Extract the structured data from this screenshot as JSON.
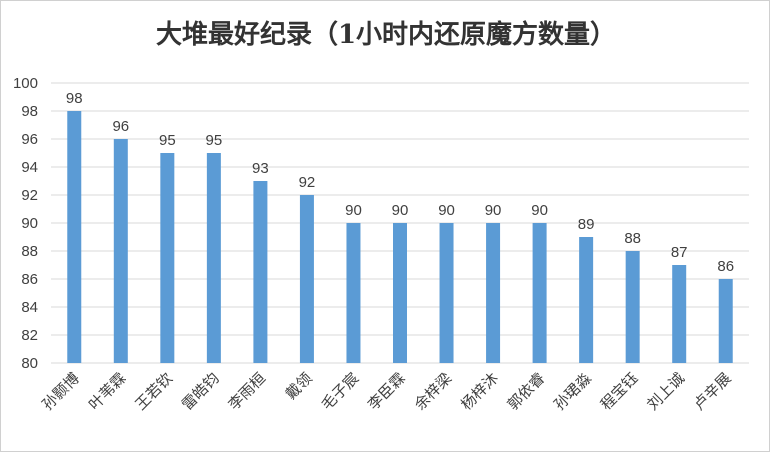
{
  "chart_data": {
    "type": "bar",
    "title": "大堆最好纪录（1小时内还原魔方数量）",
    "xlabel": "",
    "ylabel": "",
    "categories": [
      "孙颢博",
      "叶苇霖",
      "王若钦",
      "雷皓钧",
      "李雨桓",
      "戴领",
      "毛子宸",
      "李臣霖",
      "余梓梁",
      "杨梓沐",
      "郭依睿",
      "孙珺淼",
      "程宝钰",
      "刘上诚",
      "卢辛展"
    ],
    "values": [
      98,
      96,
      95,
      95,
      93,
      92,
      90,
      90,
      90,
      90,
      90,
      89,
      88,
      87,
      86
    ],
    "ylim": [
      80,
      100
    ],
    "yticks": [
      80,
      82,
      84,
      86,
      88,
      90,
      92,
      94,
      96,
      98,
      100
    ],
    "grid": true,
    "legend": "none",
    "bar_color": "#5b9bd5"
  }
}
